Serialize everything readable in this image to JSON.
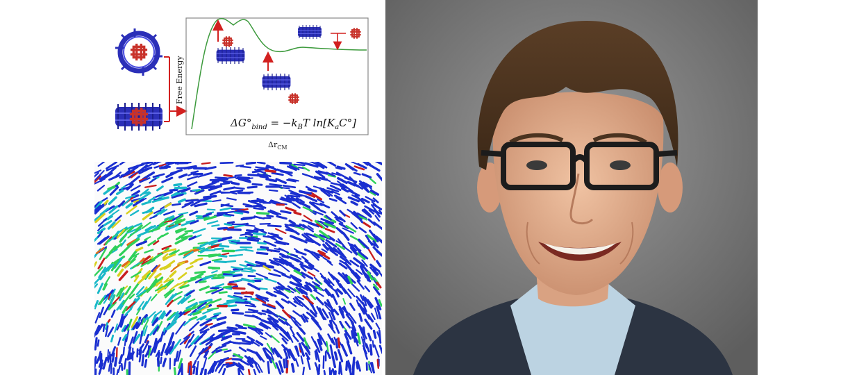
{
  "figure": {
    "y_axis_label": "Free Energy",
    "x_axis_label": "Δr",
    "x_axis_subscript": "CM",
    "equation": {
      "lhs": "ΔG°",
      "lhs_subscript": "bind",
      "rhs_prefix": " = −k",
      "rhs_k_subscript": "B",
      "rhs_mid": "T ln[K",
      "rhs_ka_subscript": "a",
      "rhs_suffix": "C°]"
    },
    "colors": {
      "host_molecule": "#2b2fb8",
      "guest_molecule": "#c8322a",
      "energy_curve": "#3c9a3c",
      "arrow": "#d2201f"
    }
  },
  "field_image": {
    "colormap": [
      "#1a2fd0",
      "#19b8c8",
      "#2fd05a",
      "#d8d020",
      "#e06a1a",
      "#c81e1e"
    ]
  },
  "portrait": {
    "background": "#7a7a7a",
    "hair": "#4a3320",
    "skin": "#e6b393",
    "glasses": "#1c1c1c",
    "jacket": "#2c3442",
    "shirt": "#bcd3e2"
  }
}
